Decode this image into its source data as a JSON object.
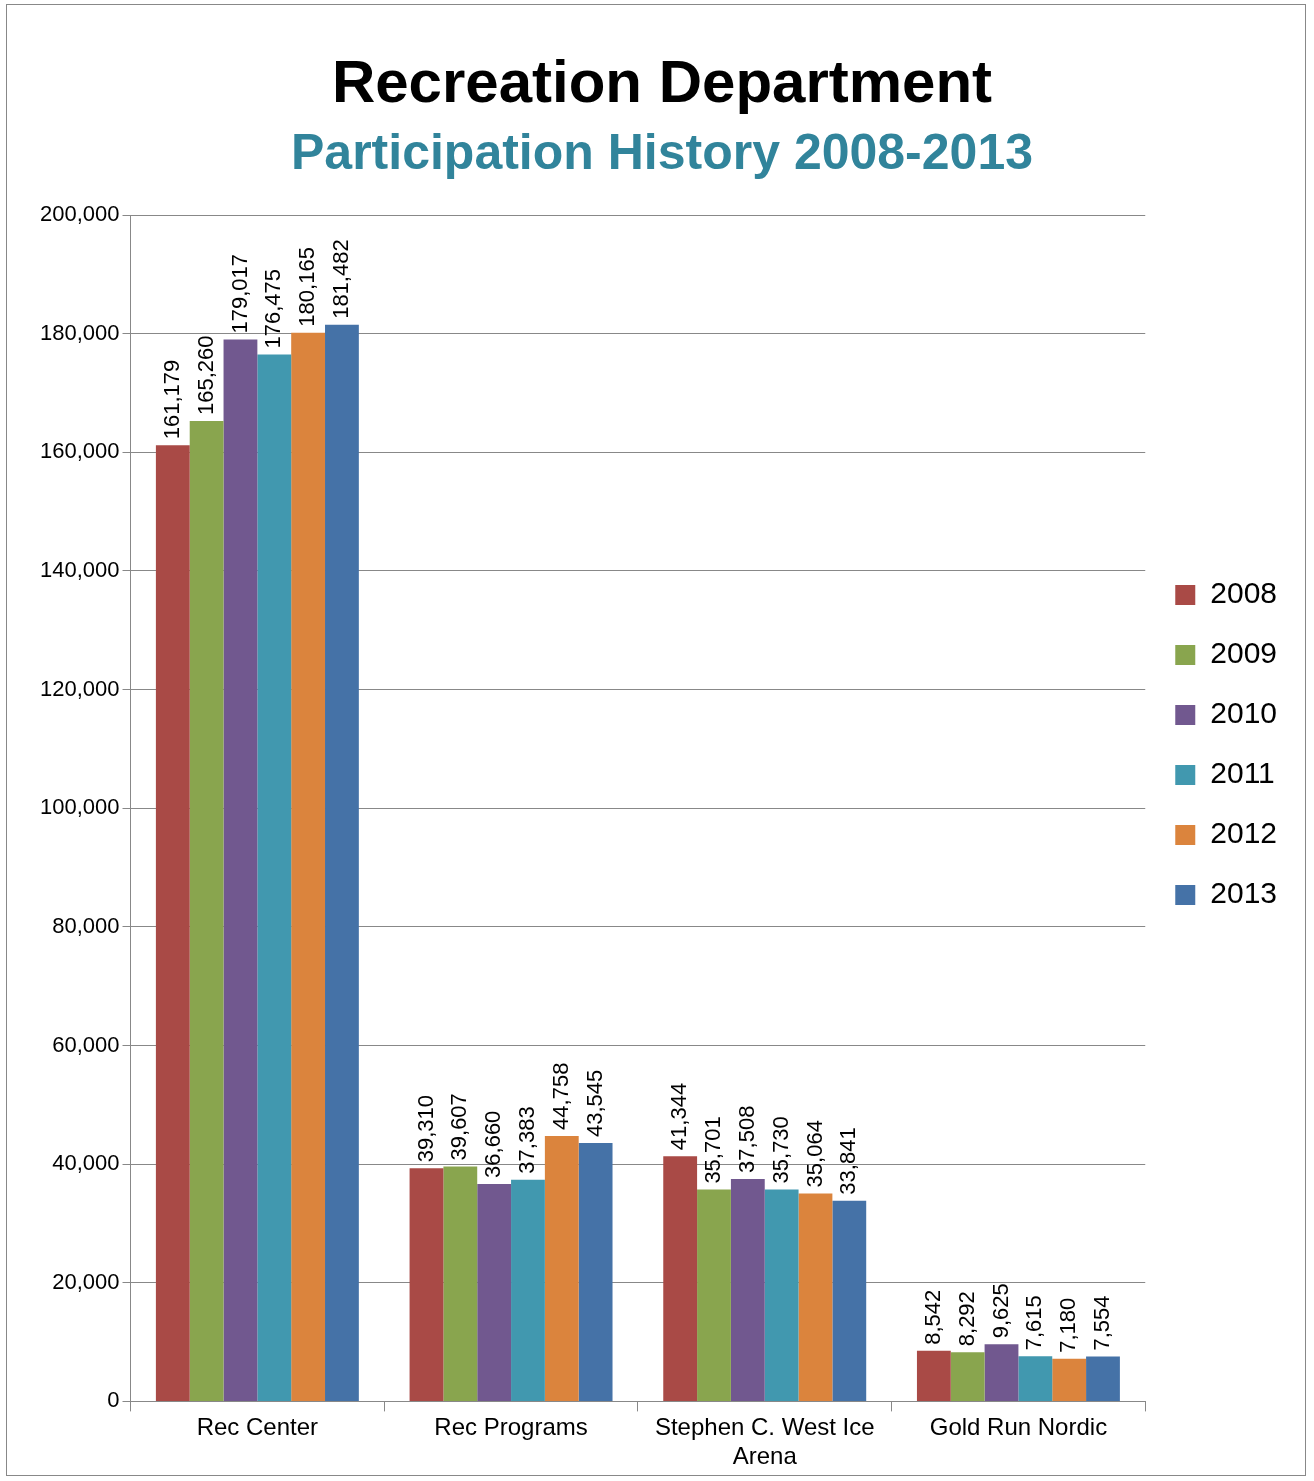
{
  "chart_data": {
    "type": "bar",
    "title": "Recreation Department",
    "subtitle": "Participation History 2008-2013",
    "categories": [
      "Rec Center",
      "Rec Programs",
      "Stephen C. West Ice Arena",
      "Gold Run Nordic"
    ],
    "series": [
      {
        "name": "2008",
        "color": "#a94a46",
        "values": [
          161179,
          39310,
          41344,
          8542
        ],
        "value_labels": [
          "161,179",
          "39,310",
          "41,344",
          "8,542"
        ]
      },
      {
        "name": "2009",
        "color": "#89a54e",
        "values": [
          165260,
          39607,
          35701,
          8292
        ],
        "value_labels": [
          "165,260",
          "39,607",
          "35,701",
          "8,292"
        ]
      },
      {
        "name": "2010",
        "color": "#71588f",
        "values": [
          179017,
          36660,
          37508,
          9625
        ],
        "value_labels": [
          "179,017",
          "36,660",
          "37,508",
          "9,625"
        ]
      },
      {
        "name": "2011",
        "color": "#4198af",
        "values": [
          176475,
          37383,
          35730,
          7615
        ],
        "value_labels": [
          "176,475",
          "37,383",
          "35,730",
          "7,615"
        ]
      },
      {
        "name": "2012",
        "color": "#db843d",
        "values": [
          180165,
          44758,
          35064,
          7180
        ],
        "value_labels": [
          "180,165",
          "44,758",
          "35,064",
          "7,180"
        ]
      },
      {
        "name": "2013",
        "color": "#4572a7",
        "values": [
          181482,
          43545,
          33841,
          7554
        ],
        "value_labels": [
          "181,482",
          "43,545",
          "33,841",
          "7,554"
        ]
      }
    ],
    "ylim": [
      0,
      200000
    ],
    "yticks": [
      0,
      {
        "value": 20000,
        "label": "20,000"
      },
      {
        "value": 40000,
        "label": "40,000"
      },
      {
        "value": 60000,
        "label": "60,000"
      },
      {
        "value": 80000,
        "label": "80,000"
      },
      {
        "value": 100000,
        "label": "100,000"
      },
      {
        "value": 120000,
        "label": "120,000"
      },
      {
        "value": 140000,
        "label": "140,000"
      },
      {
        "value": 160000,
        "label": "160,000"
      },
      {
        "value": 180000,
        "label": "180,000"
      },
      {
        "value": 200000,
        "label": "200,000"
      }
    ],
    "grid": "y",
    "legend": "right"
  }
}
